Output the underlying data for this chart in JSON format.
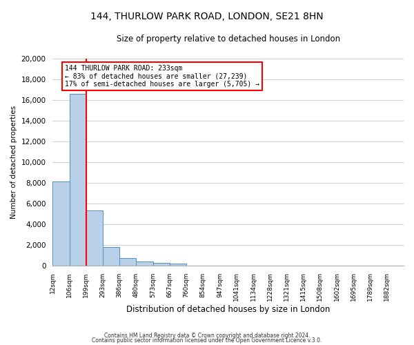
{
  "title": "144, THURLOW PARK ROAD, LONDON, SE21 8HN",
  "subtitle": "Size of property relative to detached houses in London",
  "bar_values": [
    8100,
    16600,
    5300,
    1800,
    700,
    350,
    230,
    150,
    0,
    0,
    0,
    0,
    0,
    0,
    0,
    0,
    0,
    0,
    0,
    0,
    0
  ],
  "bar_labels": [
    "12sqm",
    "106sqm",
    "199sqm",
    "293sqm",
    "386sqm",
    "480sqm",
    "573sqm",
    "667sqm",
    "760sqm",
    "854sqm",
    "947sqm",
    "1041sqm",
    "1134sqm",
    "1228sqm",
    "1321sqm",
    "1415sqm",
    "1508sqm",
    "1602sqm",
    "1695sqm",
    "1789sqm",
    "1882sqm"
  ],
  "xlabel": "Distribution of detached houses by size in London",
  "ylabel": "Number of detached properties",
  "ylim": [
    0,
    20000
  ],
  "yticks": [
    0,
    2000,
    4000,
    6000,
    8000,
    10000,
    12000,
    14000,
    16000,
    18000,
    20000
  ],
  "bar_color": "#b8d0e8",
  "bar_edge_color": "#4f8fbf",
  "red_line_x": 2.0,
  "annotation_title": "144 THURLOW PARK ROAD: 233sqm",
  "annotation_line1": "← 83% of detached houses are smaller (27,239)",
  "annotation_line2": "17% of semi-detached houses are larger (5,705) →",
  "footer_line1": "Contains HM Land Registry data © Crown copyright and database right 2024.",
  "footer_line2": "Contains public sector information licensed under the Open Government Licence v.3.0.",
  "background_color": "#ffffff",
  "grid_color": "#d0d0d0"
}
